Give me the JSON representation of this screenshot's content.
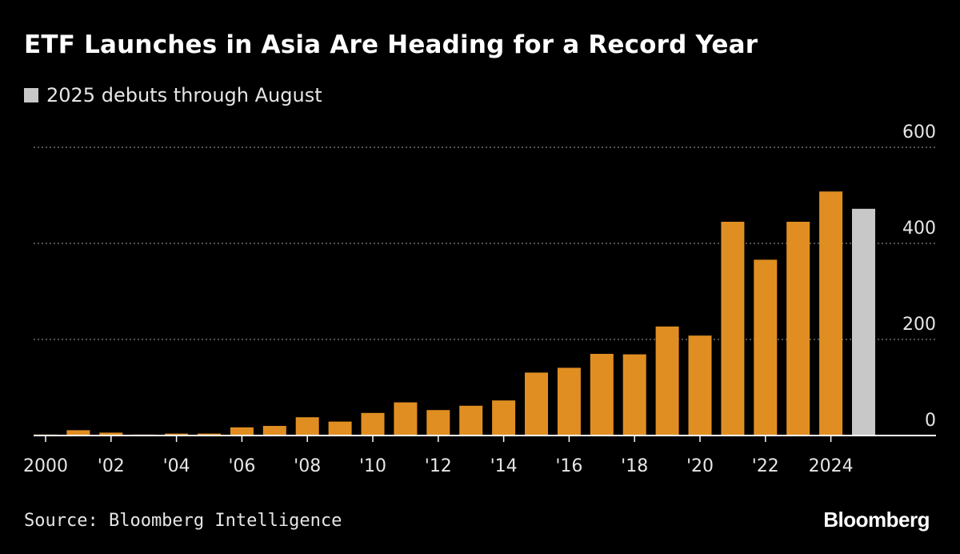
{
  "chart_data": {
    "type": "bar",
    "title": "ETF Launches in Asia Are Heading for a Record Year",
    "legend": [
      {
        "label": "2025 debuts through August",
        "color": "#c8c8c8"
      }
    ],
    "categories": [
      "2000",
      "2001",
      "2002",
      "2003",
      "2004",
      "2005",
      "2006",
      "2007",
      "2008",
      "2009",
      "2010",
      "2011",
      "2012",
      "2013",
      "2014",
      "2015",
      "2016",
      "2017",
      "2018",
      "2019",
      "2020",
      "2021",
      "2022",
      "2023",
      "2024",
      "2025"
    ],
    "values": [
      2,
      11,
      6,
      2,
      4,
      4,
      17,
      20,
      38,
      29,
      47,
      69,
      53,
      62,
      73,
      131,
      141,
      170,
      169,
      227,
      208,
      445,
      366,
      445,
      508,
      472
    ],
    "bar_colors": [
      "#e08e22",
      "#e08e22",
      "#e08e22",
      "#e08e22",
      "#e08e22",
      "#e08e22",
      "#e08e22",
      "#e08e22",
      "#e08e22",
      "#e08e22",
      "#e08e22",
      "#e08e22",
      "#e08e22",
      "#e08e22",
      "#e08e22",
      "#e08e22",
      "#e08e22",
      "#e08e22",
      "#e08e22",
      "#e08e22",
      "#e08e22",
      "#e08e22",
      "#e08e22",
      "#e08e22",
      "#e08e22",
      "#c8c8c8"
    ],
    "x_tick_labels": [
      {
        "index": 0,
        "label": "2000"
      },
      {
        "index": 2,
        "label": "'02"
      },
      {
        "index": 4,
        "label": "'04"
      },
      {
        "index": 6,
        "label": "'06"
      },
      {
        "index": 8,
        "label": "'08"
      },
      {
        "index": 10,
        "label": "'10"
      },
      {
        "index": 12,
        "label": "'12"
      },
      {
        "index": 14,
        "label": "'14"
      },
      {
        "index": 16,
        "label": "'16"
      },
      {
        "index": 18,
        "label": "'18"
      },
      {
        "index": 20,
        "label": "'20"
      },
      {
        "index": 22,
        "label": "'22"
      },
      {
        "index": 24,
        "label": "2024"
      }
    ],
    "y_ticks": [
      0,
      200,
      400,
      600
    ],
    "ylim": [
      0,
      600
    ],
    "grid": true,
    "y_axis_position": "right",
    "xlabel": "",
    "ylabel": ""
  },
  "footer": {
    "source": "Source: Bloomberg Intelligence",
    "brand": "Bloomberg"
  },
  "colors": {
    "background": "#000000",
    "bar": "#e08e22",
    "highlight_bar": "#c8c8c8",
    "grid": "#6e6e6e",
    "text": "#e6e6e6"
  }
}
